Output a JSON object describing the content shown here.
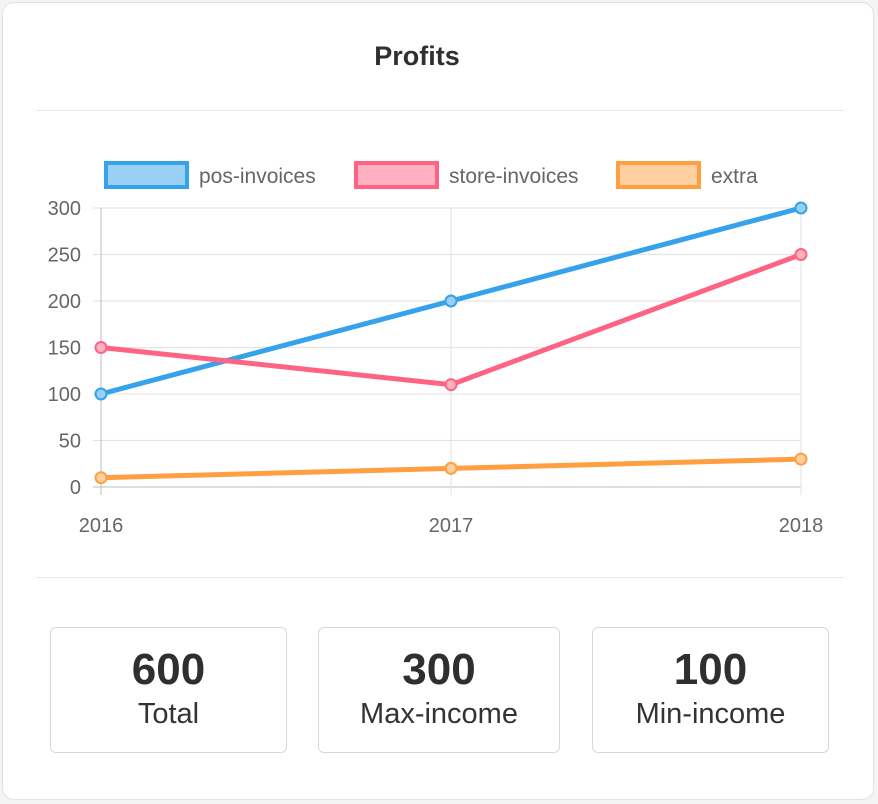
{
  "card": {
    "title": "Profits"
  },
  "chart_data": {
    "type": "line",
    "title": "",
    "xlabel": "",
    "ylabel": "",
    "categories": [
      "2016",
      "2017",
      "2018"
    ],
    "ylim": [
      0,
      300
    ],
    "yticks": [
      0,
      50,
      100,
      150,
      200,
      250,
      300
    ],
    "grid": true,
    "legend": "top",
    "series": [
      {
        "name": "pos-invoices",
        "values": [
          100,
          200,
          300
        ],
        "color": "#36a2eb",
        "fill": "#9ad0f5"
      },
      {
        "name": "store-invoices",
        "values": [
          150,
          110,
          250
        ],
        "color": "#ff6384",
        "fill": "#ffb1c1"
      },
      {
        "name": "extra",
        "values": [
          10,
          20,
          30
        ],
        "color": "#ff9f40",
        "fill": "#ffcf9f"
      }
    ]
  },
  "stats": [
    {
      "value": "600",
      "label": "Total"
    },
    {
      "value": "300",
      "label": "Max-income"
    },
    {
      "value": "100",
      "label": "Min-income"
    }
  ]
}
